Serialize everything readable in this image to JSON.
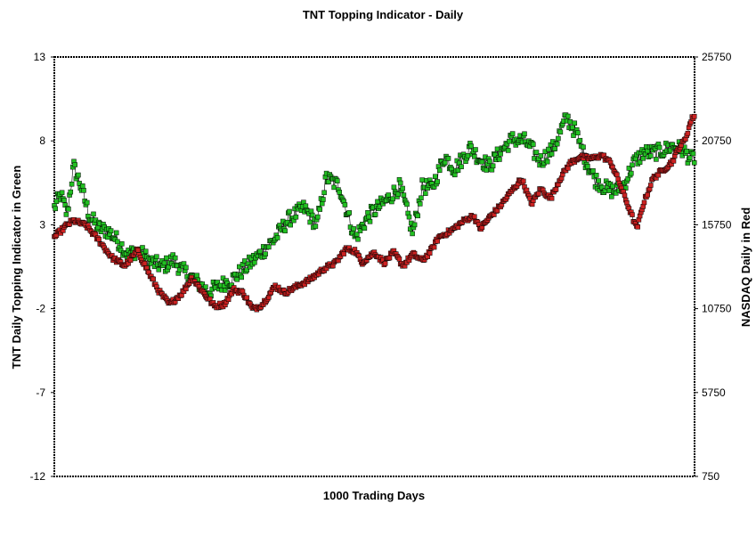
{
  "chart_data": {
    "type": "line",
    "title": "TNT Topping Indicator - Daily",
    "xlabel": "1000 Trading Days",
    "ylabel_left": "TNT Daily Topping Indicator in Green",
    "ylabel_right": "NASDAQ Daily in Red",
    "x_range": [
      0,
      1000
    ],
    "ylim_left": [
      -12,
      13
    ],
    "ylim_right": [
      750,
      25750
    ],
    "left_ticks": [
      "13",
      "8",
      "3",
      "-2",
      "-7",
      "-12"
    ],
    "right_ticks": [
      "25750",
      "20750",
      "15750",
      "10750",
      "5750",
      "750"
    ],
    "grid": false,
    "marker": "square",
    "series": [
      {
        "name": "TNT Daily Topping Indicator",
        "axis": "left",
        "color": "#22c022",
        "anchors": [
          [
            0,
            4
          ],
          [
            10,
            4.8
          ],
          [
            20,
            3.6
          ],
          [
            30,
            6.5
          ],
          [
            40,
            5.5
          ],
          [
            55,
            3.5
          ],
          [
            70,
            2.8
          ],
          [
            85,
            2.6
          ],
          [
            100,
            2
          ],
          [
            115,
            1.2
          ],
          [
            130,
            1.5
          ],
          [
            150,
            0.8
          ],
          [
            170,
            0.5
          ],
          [
            185,
            0.9
          ],
          [
            200,
            0.3
          ],
          [
            220,
            -0.3
          ],
          [
            240,
            -1
          ],
          [
            260,
            -0.6
          ],
          [
            280,
            -0.2
          ],
          [
            300,
            0.5
          ],
          [
            320,
            1.2
          ],
          [
            345,
            2.2
          ],
          [
            365,
            3.3
          ],
          [
            390,
            4
          ],
          [
            410,
            3
          ],
          [
            425,
            5.8
          ],
          [
            445,
            5.3
          ],
          [
            470,
            2.2
          ],
          [
            490,
            3.5
          ],
          [
            505,
            4
          ],
          [
            520,
            4.5
          ],
          [
            540,
            5.3
          ],
          [
            560,
            2.5
          ],
          [
            575,
            5.3
          ],
          [
            590,
            5.2
          ],
          [
            610,
            7.1
          ],
          [
            625,
            6.3
          ],
          [
            650,
            7.6
          ],
          [
            665,
            6.9
          ],
          [
            680,
            6.5
          ],
          [
            700,
            7.5
          ],
          [
            715,
            8.1
          ],
          [
            735,
            8
          ],
          [
            760,
            6.8
          ],
          [
            780,
            7.6
          ],
          [
            800,
            9.4
          ],
          [
            815,
            8.5
          ],
          [
            830,
            6.8
          ],
          [
            845,
            5.7
          ],
          [
            860,
            5.2
          ],
          [
            875,
            5
          ],
          [
            890,
            5.4
          ],
          [
            905,
            6.7
          ],
          [
            920,
            7.3
          ],
          [
            935,
            7.3
          ],
          [
            950,
            7.4
          ],
          [
            965,
            7.7
          ],
          [
            980,
            7.5
          ],
          [
            995,
            6.9
          ],
          [
            1000,
            7
          ]
        ]
      },
      {
        "name": "NASDAQ Daily",
        "axis": "right",
        "color": "#cc2222",
        "anchors": [
          [
            0,
            15000
          ],
          [
            20,
            15750
          ],
          [
            30,
            16000
          ],
          [
            50,
            15700
          ],
          [
            70,
            14800
          ],
          [
            90,
            13800
          ],
          [
            110,
            13300
          ],
          [
            130,
            14200
          ],
          [
            150,
            12700
          ],
          [
            165,
            11700
          ],
          [
            180,
            11000
          ],
          [
            200,
            11700
          ],
          [
            215,
            12600
          ],
          [
            235,
            11600
          ],
          [
            250,
            10900
          ],
          [
            265,
            11000
          ],
          [
            280,
            11900
          ],
          [
            295,
            11700
          ],
          [
            310,
            10700
          ],
          [
            325,
            11000
          ],
          [
            345,
            12100
          ],
          [
            360,
            11700
          ],
          [
            380,
            12100
          ],
          [
            400,
            12500
          ],
          [
            420,
            13100
          ],
          [
            440,
            13500
          ],
          [
            455,
            14300
          ],
          [
            470,
            14200
          ],
          [
            480,
            13500
          ],
          [
            500,
            14100
          ],
          [
            515,
            13500
          ],
          [
            530,
            14100
          ],
          [
            545,
            13300
          ],
          [
            560,
            14000
          ],
          [
            575,
            13600
          ],
          [
            590,
            14300
          ],
          [
            600,
            15000
          ],
          [
            620,
            15400
          ],
          [
            640,
            16000
          ],
          [
            655,
            16300
          ],
          [
            665,
            15500
          ],
          [
            680,
            16200
          ],
          [
            695,
            16800
          ],
          [
            715,
            17800
          ],
          [
            730,
            18500
          ],
          [
            745,
            17000
          ],
          [
            760,
            17900
          ],
          [
            775,
            17300
          ],
          [
            790,
            18500
          ],
          [
            805,
            19400
          ],
          [
            820,
            19800
          ],
          [
            840,
            19700
          ],
          [
            855,
            19900
          ],
          [
            870,
            19400
          ],
          [
            880,
            18500
          ],
          [
            890,
            17500
          ],
          [
            900,
            16500
          ],
          [
            910,
            15500
          ],
          [
            920,
            17000
          ],
          [
            935,
            18500
          ],
          [
            950,
            19000
          ],
          [
            965,
            19500
          ],
          [
            975,
            20300
          ],
          [
            985,
            20800
          ],
          [
            995,
            22000
          ],
          [
            1000,
            22300
          ]
        ]
      }
    ]
  }
}
